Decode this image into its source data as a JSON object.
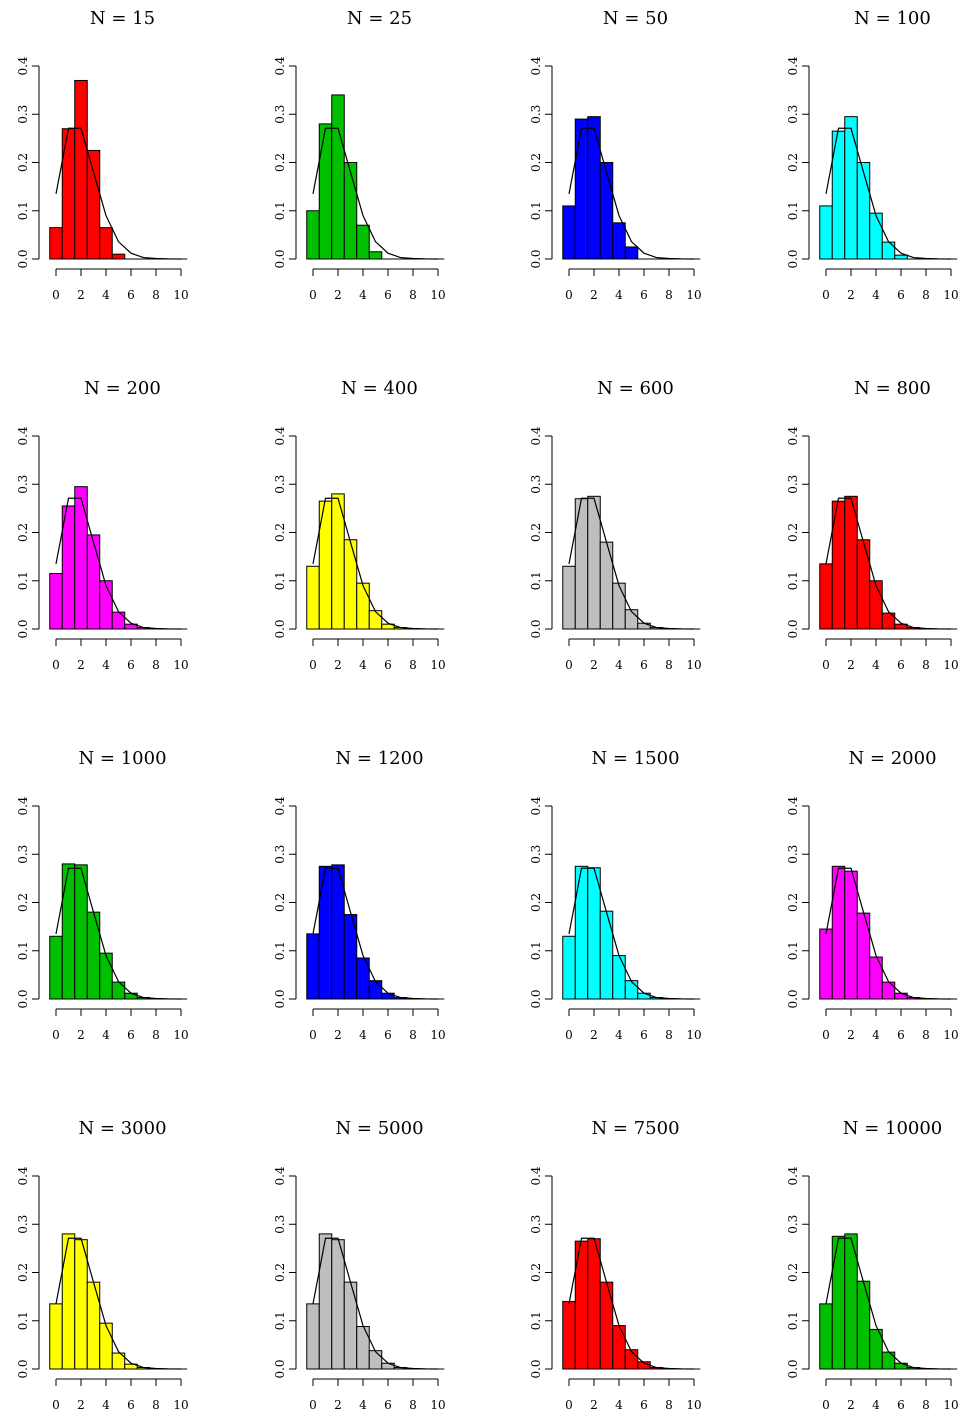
{
  "chart_data": [
    {
      "type": "bar",
      "title": "N = 15",
      "color": "#ff0000",
      "bin_edges": [
        0,
        1,
        2,
        3,
        4,
        5,
        6,
        7,
        8,
        9,
        10
      ],
      "values": [
        0.065,
        0.27,
        0.37,
        0.225,
        0.065,
        0.01,
        0,
        0,
        0,
        0
      ],
      "density_line": [
        0.135,
        0.271,
        0.271,
        0.18,
        0.09,
        0.036,
        0.012,
        0.003,
        0.001,
        0.0002,
        0
      ],
      "ylim": [
        0,
        0.4
      ],
      "xlim": [
        0,
        10
      ],
      "yticks": [
        "0.0",
        "0.1",
        "0.2",
        "0.3",
        "0.4"
      ],
      "xticks": [
        "0",
        "2",
        "4",
        "6",
        "8",
        "10"
      ]
    },
    {
      "type": "bar",
      "title": "N = 25",
      "color": "#00c000",
      "bin_edges": [
        0,
        1,
        2,
        3,
        4,
        5,
        6,
        7,
        8,
        9,
        10
      ],
      "values": [
        0.1,
        0.28,
        0.34,
        0.2,
        0.07,
        0.015,
        0,
        0,
        0,
        0
      ],
      "density_line": [
        0.135,
        0.271,
        0.271,
        0.18,
        0.09,
        0.036,
        0.012,
        0.003,
        0.001,
        0.0002,
        0
      ],
      "ylim": [
        0,
        0.4
      ],
      "xlim": [
        0,
        10
      ],
      "yticks": [
        "0.0",
        "0.1",
        "0.2",
        "0.3",
        "0.4"
      ],
      "xticks": [
        "0",
        "2",
        "4",
        "6",
        "8",
        "10"
      ]
    },
    {
      "type": "bar",
      "title": "N = 50",
      "color": "#0000ff",
      "bin_edges": [
        0,
        1,
        2,
        3,
        4,
        5,
        6,
        7,
        8,
        9,
        10
      ],
      "values": [
        0.11,
        0.29,
        0.295,
        0.2,
        0.075,
        0.025,
        0,
        0,
        0,
        0
      ],
      "density_line": [
        0.135,
        0.271,
        0.271,
        0.18,
        0.09,
        0.036,
        0.012,
        0.003,
        0.001,
        0.0002,
        0
      ],
      "ylim": [
        0,
        0.4
      ],
      "xlim": [
        0,
        10
      ],
      "yticks": [
        "0.0",
        "0.1",
        "0.2",
        "0.3",
        "0.4"
      ],
      "xticks": [
        "0",
        "2",
        "4",
        "6",
        "8",
        "10"
      ]
    },
    {
      "type": "bar",
      "title": "N = 100",
      "color": "#00ffff",
      "bin_edges": [
        0,
        1,
        2,
        3,
        4,
        5,
        6,
        7,
        8,
        9,
        10
      ],
      "values": [
        0.11,
        0.265,
        0.295,
        0.2,
        0.095,
        0.035,
        0.008,
        0,
        0,
        0
      ],
      "density_line": [
        0.135,
        0.271,
        0.271,
        0.18,
        0.09,
        0.036,
        0.012,
        0.003,
        0.001,
        0.0002,
        0
      ],
      "ylim": [
        0,
        0.4
      ],
      "xlim": [
        0,
        10
      ],
      "yticks": [
        "0.0",
        "0.1",
        "0.2",
        "0.3",
        "0.4"
      ],
      "xticks": [
        "0",
        "2",
        "4",
        "6",
        "8",
        "10"
      ]
    },
    {
      "type": "bar",
      "title": "N = 200",
      "color": "#ff00ff",
      "bin_edges": [
        0,
        1,
        2,
        3,
        4,
        5,
        6,
        7,
        8,
        9,
        10
      ],
      "values": [
        0.115,
        0.255,
        0.295,
        0.195,
        0.1,
        0.035,
        0.01,
        0.003,
        0,
        0
      ],
      "density_line": [
        0.135,
        0.271,
        0.271,
        0.18,
        0.09,
        0.036,
        0.012,
        0.003,
        0.001,
        0.0002,
        0
      ],
      "ylim": [
        0,
        0.4
      ],
      "xlim": [
        0,
        10
      ],
      "yticks": [
        "0.0",
        "0.1",
        "0.2",
        "0.3",
        "0.4"
      ],
      "xticks": [
        "0",
        "2",
        "4",
        "6",
        "8",
        "10"
      ]
    },
    {
      "type": "bar",
      "title": "N = 400",
      "color": "#ffff00",
      "bin_edges": [
        0,
        1,
        2,
        3,
        4,
        5,
        6,
        7,
        8,
        9,
        10
      ],
      "values": [
        0.13,
        0.265,
        0.28,
        0.185,
        0.095,
        0.038,
        0.01,
        0.003,
        0,
        0
      ],
      "density_line": [
        0.135,
        0.271,
        0.271,
        0.18,
        0.09,
        0.036,
        0.012,
        0.003,
        0.001,
        0.0002,
        0
      ],
      "ylim": [
        0,
        0.4
      ],
      "xlim": [
        0,
        10
      ],
      "yticks": [
        "0.0",
        "0.1",
        "0.2",
        "0.3",
        "0.4"
      ],
      "xticks": [
        "0",
        "2",
        "4",
        "6",
        "8",
        "10"
      ]
    },
    {
      "type": "bar",
      "title": "N = 600",
      "color": "#bebebe",
      "bin_edges": [
        0,
        1,
        2,
        3,
        4,
        5,
        6,
        7,
        8,
        9,
        10
      ],
      "values": [
        0.13,
        0.27,
        0.275,
        0.18,
        0.095,
        0.04,
        0.012,
        0.003,
        0,
        0
      ],
      "density_line": [
        0.135,
        0.271,
        0.271,
        0.18,
        0.09,
        0.036,
        0.012,
        0.003,
        0.001,
        0.0002,
        0
      ],
      "ylim": [
        0,
        0.4
      ],
      "xlim": [
        0,
        10
      ],
      "yticks": [
        "0.0",
        "0.1",
        "0.2",
        "0.3",
        "0.4"
      ],
      "xticks": [
        "0",
        "2",
        "4",
        "6",
        "8",
        "10"
      ]
    },
    {
      "type": "bar",
      "title": "N = 800",
      "color": "#ff0000",
      "bin_edges": [
        0,
        1,
        2,
        3,
        4,
        5,
        6,
        7,
        8,
        9,
        10
      ],
      "values": [
        0.135,
        0.265,
        0.275,
        0.185,
        0.1,
        0.033,
        0.01,
        0.003,
        0,
        0
      ],
      "density_line": [
        0.135,
        0.271,
        0.271,
        0.18,
        0.09,
        0.036,
        0.012,
        0.003,
        0.001,
        0.0002,
        0
      ],
      "ylim": [
        0,
        0.4
      ],
      "xlim": [
        0,
        10
      ],
      "yticks": [
        "0.0",
        "0.1",
        "0.2",
        "0.3",
        "0.4"
      ],
      "xticks": [
        "0",
        "2",
        "4",
        "6",
        "8",
        "10"
      ]
    },
    {
      "type": "bar",
      "title": "N = 1000",
      "color": "#00c000",
      "bin_edges": [
        0,
        1,
        2,
        3,
        4,
        5,
        6,
        7,
        8,
        9,
        10
      ],
      "values": [
        0.13,
        0.28,
        0.278,
        0.18,
        0.095,
        0.035,
        0.012,
        0.003,
        0,
        0
      ],
      "density_line": [
        0.135,
        0.271,
        0.271,
        0.18,
        0.09,
        0.036,
        0.012,
        0.003,
        0.001,
        0.0002,
        0
      ],
      "ylim": [
        0,
        0.4
      ],
      "xlim": [
        0,
        10
      ],
      "yticks": [
        "0.0",
        "0.1",
        "0.2",
        "0.3",
        "0.4"
      ],
      "xticks": [
        "0",
        "2",
        "4",
        "6",
        "8",
        "10"
      ]
    },
    {
      "type": "bar",
      "title": "N = 1200",
      "color": "#0000ff",
      "bin_edges": [
        0,
        1,
        2,
        3,
        4,
        5,
        6,
        7,
        8,
        9,
        10
      ],
      "values": [
        0.135,
        0.275,
        0.278,
        0.175,
        0.085,
        0.038,
        0.012,
        0.003,
        0,
        0
      ],
      "density_line": [
        0.135,
        0.271,
        0.271,
        0.18,
        0.09,
        0.036,
        0.012,
        0.003,
        0.001,
        0.0002,
        0
      ],
      "ylim": [
        0,
        0.4
      ],
      "xlim": [
        0,
        10
      ],
      "yticks": [
        "0.0",
        "0.1",
        "0.2",
        "0.3",
        "0.4"
      ],
      "xticks": [
        "0",
        "2",
        "4",
        "6",
        "8",
        "10"
      ]
    },
    {
      "type": "bar",
      "title": "N = 1500",
      "color": "#00ffff",
      "bin_edges": [
        0,
        1,
        2,
        3,
        4,
        5,
        6,
        7,
        8,
        9,
        10
      ],
      "values": [
        0.13,
        0.275,
        0.272,
        0.182,
        0.09,
        0.038,
        0.012,
        0.003,
        0,
        0
      ],
      "density_line": [
        0.135,
        0.271,
        0.271,
        0.18,
        0.09,
        0.036,
        0.012,
        0.003,
        0.001,
        0.0002,
        0
      ],
      "ylim": [
        0,
        0.4
      ],
      "xlim": [
        0,
        10
      ],
      "yticks": [
        "0.0",
        "0.1",
        "0.2",
        "0.3",
        "0.4"
      ],
      "xticks": [
        "0",
        "2",
        "4",
        "6",
        "8",
        "10"
      ]
    },
    {
      "type": "bar",
      "title": "N = 2000",
      "color": "#ff00ff",
      "bin_edges": [
        0,
        1,
        2,
        3,
        4,
        5,
        6,
        7,
        8,
        9,
        10
      ],
      "values": [
        0.145,
        0.275,
        0.265,
        0.178,
        0.087,
        0.035,
        0.012,
        0.003,
        0,
        0
      ],
      "density_line": [
        0.135,
        0.271,
        0.271,
        0.18,
        0.09,
        0.036,
        0.012,
        0.003,
        0.001,
        0.0002,
        0
      ],
      "ylim": [
        0,
        0.4
      ],
      "xlim": [
        0,
        10
      ],
      "yticks": [
        "0.0",
        "0.1",
        "0.2",
        "0.3",
        "0.4"
      ],
      "xticks": [
        "0",
        "2",
        "4",
        "6",
        "8",
        "10"
      ]
    },
    {
      "type": "bar",
      "title": "N = 3000",
      "color": "#ffff00",
      "bin_edges": [
        0,
        1,
        2,
        3,
        4,
        5,
        6,
        7,
        8,
        9,
        10
      ],
      "values": [
        0.135,
        0.28,
        0.268,
        0.18,
        0.095,
        0.033,
        0.01,
        0.003,
        0,
        0
      ],
      "density_line": [
        0.135,
        0.271,
        0.271,
        0.18,
        0.09,
        0.036,
        0.012,
        0.003,
        0.001,
        0.0002,
        0
      ],
      "ylim": [
        0,
        0.4
      ],
      "xlim": [
        0,
        10
      ],
      "yticks": [
        "0.0",
        "0.1",
        "0.2",
        "0.3",
        "0.4"
      ],
      "xticks": [
        "0",
        "2",
        "4",
        "6",
        "8",
        "10"
      ]
    },
    {
      "type": "bar",
      "title": "N = 5000",
      "color": "#bebebe",
      "bin_edges": [
        0,
        1,
        2,
        3,
        4,
        5,
        6,
        7,
        8,
        9,
        10
      ],
      "values": [
        0.135,
        0.28,
        0.268,
        0.18,
        0.088,
        0.038,
        0.012,
        0.003,
        0,
        0
      ],
      "density_line": [
        0.135,
        0.271,
        0.271,
        0.18,
        0.09,
        0.036,
        0.012,
        0.003,
        0.001,
        0.0002,
        0
      ],
      "ylim": [
        0,
        0.4
      ],
      "xlim": [
        0,
        10
      ],
      "yticks": [
        "0.0",
        "0.1",
        "0.2",
        "0.3",
        "0.4"
      ],
      "xticks": [
        "0",
        "2",
        "4",
        "6",
        "8",
        "10"
      ]
    },
    {
      "type": "bar",
      "title": "N = 7500",
      "color": "#ff0000",
      "bin_edges": [
        0,
        1,
        2,
        3,
        4,
        5,
        6,
        7,
        8,
        9,
        10
      ],
      "values": [
        0.14,
        0.265,
        0.27,
        0.18,
        0.09,
        0.04,
        0.015,
        0.003,
        0,
        0
      ],
      "density_line": [
        0.135,
        0.271,
        0.271,
        0.18,
        0.09,
        0.036,
        0.012,
        0.003,
        0.001,
        0.0002,
        0
      ],
      "ylim": [
        0,
        0.4
      ],
      "xlim": [
        0,
        10
      ],
      "yticks": [
        "0.0",
        "0.1",
        "0.2",
        "0.3",
        "0.4"
      ],
      "xticks": [
        "0",
        "2",
        "4",
        "6",
        "8",
        "10"
      ]
    },
    {
      "type": "bar",
      "title": "N = 10000",
      "color": "#00c000",
      "bin_edges": [
        0,
        1,
        2,
        3,
        4,
        5,
        6,
        7,
        8,
        9,
        10
      ],
      "values": [
        0.135,
        0.275,
        0.28,
        0.182,
        0.082,
        0.035,
        0.012,
        0.003,
        0,
        0
      ],
      "density_line": [
        0.135,
        0.271,
        0.271,
        0.18,
        0.09,
        0.036,
        0.012,
        0.003,
        0.001,
        0.0002,
        0
      ],
      "ylim": [
        0,
        0.4
      ],
      "xlim": [
        0,
        10
      ],
      "yticks": [
        "0.0",
        "0.1",
        "0.2",
        "0.3",
        "0.4"
      ],
      "xticks": [
        "0",
        "2",
        "4",
        "6",
        "8",
        "10"
      ]
    }
  ]
}
